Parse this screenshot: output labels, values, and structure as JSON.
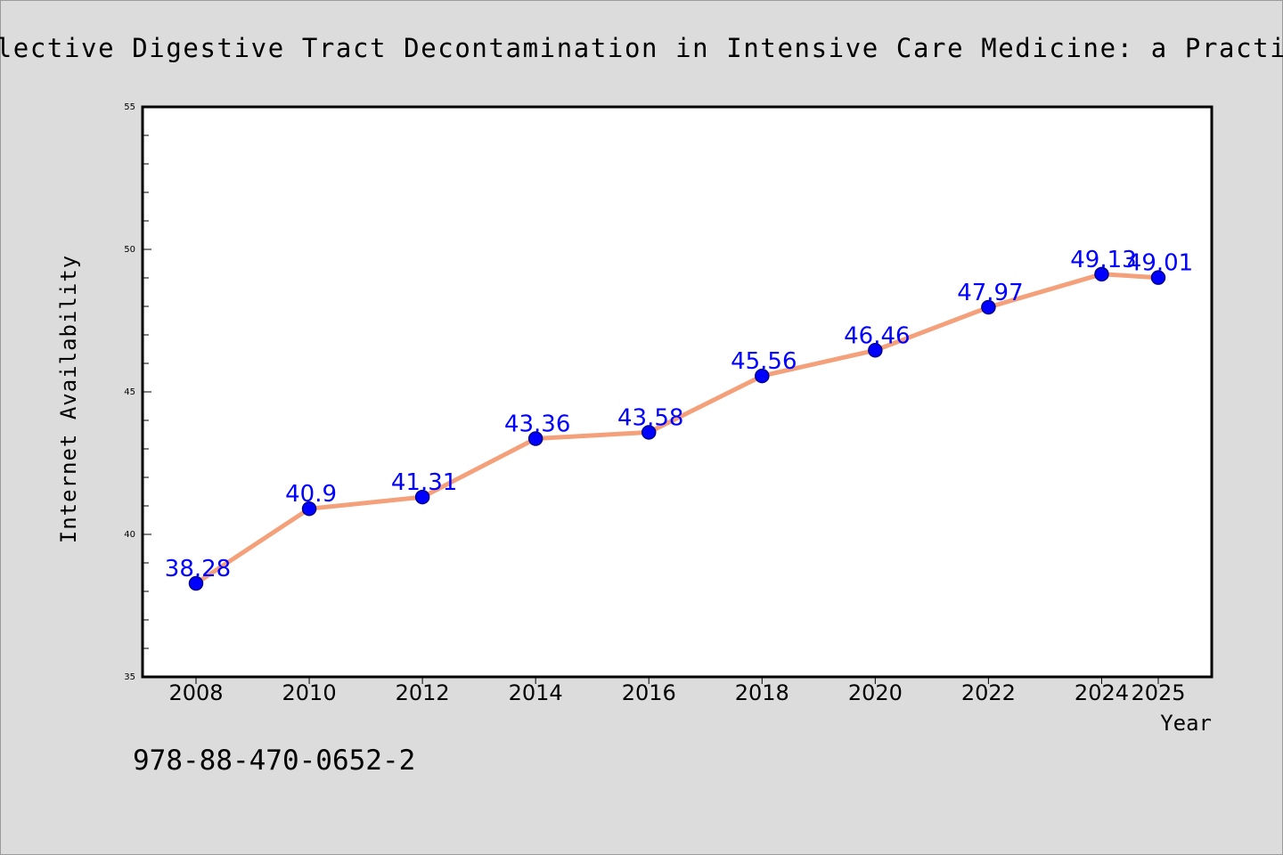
{
  "chart_data": {
    "type": "line",
    "title": "Selective Digestive Tract Decontamination in Intensive Care Medicine: a Practica",
    "xlabel": "Year",
    "ylabel": "Internet Availability",
    "categories": [
      "2008",
      "2010",
      "2012",
      "2014",
      "2016",
      "2018",
      "2020",
      "2022",
      "2024",
      "2025"
    ],
    "series": [
      {
        "values": [
          38.28,
          40.9,
          41.31,
          43.36,
          43.58,
          45.56,
          46.46,
          47.97,
          49.13,
          49.01
        ],
        "labels": [
          "38.28",
          "40.9",
          "41.31",
          "43.36",
          "43.58",
          "45.56",
          "46.46",
          "47.97",
          "49.13",
          "49.01"
        ]
      }
    ],
    "ylim": [
      35,
      55
    ],
    "yticks": [
      "35",
      "40",
      "45",
      "50",
      "55"
    ],
    "grid": false,
    "legend": "none",
    "colors": {
      "line": "#f4a07a",
      "marker_fill": "#0000ff",
      "marker_stroke": "#00008b",
      "data_label": "#0000ff"
    }
  },
  "footer": {
    "isbn": "978-88-470-0652-2"
  }
}
